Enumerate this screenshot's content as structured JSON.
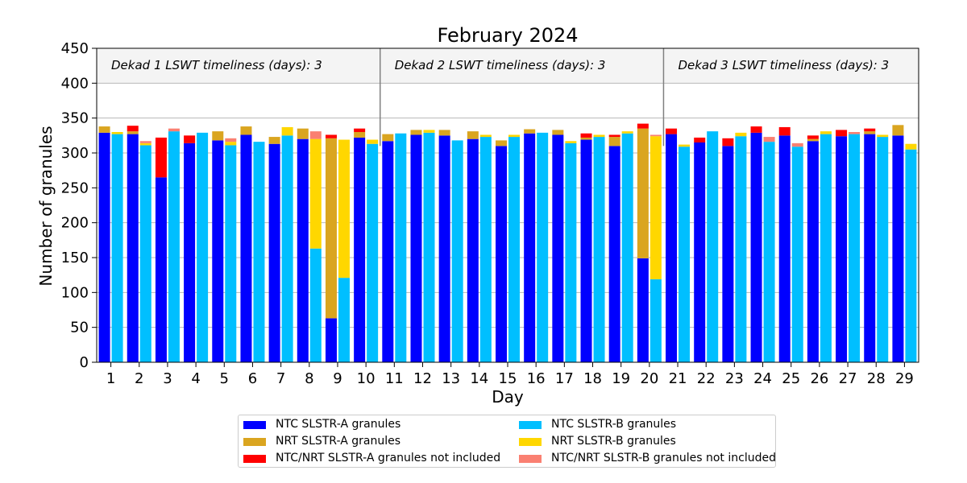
{
  "chart_data": {
    "type": "bar",
    "title": "February 2024",
    "xlabel": "Day",
    "ylabel": "Number of granules",
    "ylim": [
      0,
      450
    ],
    "yticks": [
      0,
      50,
      100,
      150,
      200,
      250,
      300,
      350,
      400,
      450
    ],
    "categories": [
      "1",
      "2",
      "3",
      "4",
      "5",
      "6",
      "7",
      "8",
      "9",
      "10",
      "11",
      "12",
      "13",
      "14",
      "15",
      "16",
      "17",
      "18",
      "19",
      "20",
      "21",
      "22",
      "23",
      "24",
      "25",
      "26",
      "27",
      "28",
      "29"
    ],
    "grid": "horizontal",
    "legend_position": "bottom-center",
    "annotations": [
      {
        "text": "Dekad 1 LSWT timeliness (days): 3",
        "days": [
          1,
          10
        ]
      },
      {
        "text": "Dekad 2 LSWT timeliness (days): 3",
        "days": [
          11,
          20
        ]
      },
      {
        "text": "Dekad 3 LSWT timeliness (days): 3",
        "days": [
          21,
          29
        ]
      }
    ],
    "colors": {
      "ntc_a": "#0000ff",
      "nrt_a": "#daa520",
      "not_a": "#ff0000",
      "ntc_b": "#00bfff",
      "nrt_b": "#ffd700",
      "not_b": "#fa8072"
    },
    "series": [
      {
        "key": "ntc_a",
        "name": "NTC SLSTR-A granules",
        "group": "A",
        "values": [
          329,
          327,
          265,
          314,
          318,
          326,
          313,
          320,
          63,
          322,
          317,
          326,
          325,
          320,
          310,
          328,
          326,
          319,
          310,
          149,
          327,
          315,
          310,
          329,
          325,
          317,
          324,
          327,
          325
        ]
      },
      {
        "key": "nrt_a",
        "name": "NRT SLSTR-A granules",
        "group": "A",
        "values": [
          9,
          4,
          0,
          0,
          13,
          12,
          10,
          15,
          258,
          8,
          10,
          7,
          8,
          11,
          8,
          6,
          7,
          3,
          13,
          186,
          0,
          0,
          0,
          0,
          0,
          3,
          0,
          4,
          15
        ]
      },
      {
        "key": "not_a",
        "name": "NTC/NRT SLSTR-A granules not included",
        "group": "A",
        "values": [
          0,
          8,
          57,
          11,
          0,
          0,
          0,
          0,
          5,
          5,
          0,
          0,
          0,
          0,
          0,
          0,
          0,
          6,
          3,
          7,
          8,
          7,
          11,
          9,
          12,
          5,
          9,
          4,
          0
        ]
      },
      {
        "key": "ntc_b",
        "name": "NTC SLSTR-B granules",
        "group": "B",
        "values": [
          327,
          311,
          331,
          329,
          311,
          316,
          325,
          163,
          121,
          313,
          328,
          329,
          318,
          323,
          323,
          329,
          314,
          323,
          328,
          119,
          309,
          331,
          324,
          316,
          309,
          327,
          327,
          323,
          305
        ]
      },
      {
        "key": "nrt_b",
        "name": "NRT SLSTR-B granules",
        "group": "B",
        "values": [
          3,
          3,
          0,
          0,
          5,
          0,
          12,
          157,
          198,
          6,
          0,
          4,
          0,
          3,
          3,
          0,
          3,
          3,
          3,
          205,
          3,
          0,
          5,
          0,
          0,
          4,
          0,
          3,
          8
        ]
      },
      {
        "key": "not_b",
        "name": "NTC/NRT SLSTR-B granules not included",
        "group": "B",
        "values": [
          0,
          3,
          4,
          0,
          5,
          0,
          0,
          11,
          0,
          0,
          0,
          0,
          0,
          0,
          0,
          0,
          0,
          0,
          0,
          2,
          0,
          0,
          0,
          7,
          5,
          0,
          3,
          0,
          0
        ]
      }
    ],
    "legend_order": [
      "ntc_a",
      "ntc_b",
      "nrt_a",
      "nrt_b",
      "not_a",
      "not_b"
    ]
  }
}
